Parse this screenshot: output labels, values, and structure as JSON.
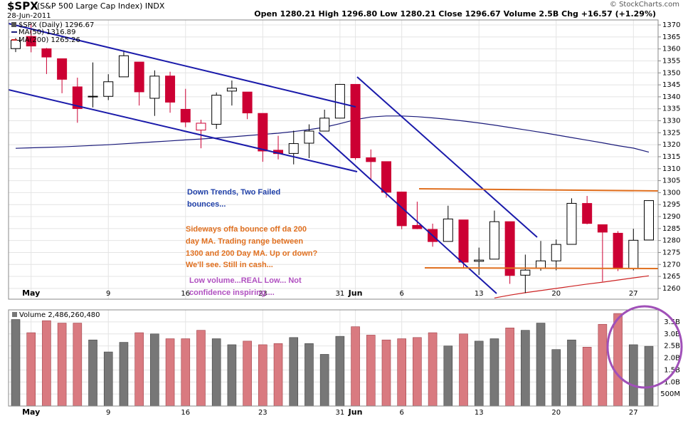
{
  "chart_data": {
    "type": "candlestick",
    "symbol": "$SPX",
    "title": "(S&P 500 Large Cap Index) INDX",
    "date": "28-Jun-2011",
    "quote": "Open 1280.21  High 1296.80  Low 1280.21  Close 1296.67  Volume 2.5B  Chg +16.57 (+1.29%)",
    "copyright": "© StockCharts.com",
    "price_legend": "$SPX (Daily) 1296.67",
    "categories": [
      null,
      "May",
      null,
      null,
      null,
      null,
      "9",
      null,
      null,
      null,
      null,
      "16",
      null,
      null,
      null,
      null,
      "23",
      null,
      null,
      null,
      null,
      "31",
      "Jun",
      null,
      null,
      "6",
      null,
      null,
      null,
      null,
      "13",
      null,
      null,
      null,
      null,
      "20",
      null,
      null,
      null,
      null,
      "27",
      null
    ],
    "open": [
      1360.14,
      1365.21,
      1360.07,
      1355.9,
      1344.16,
      1340.24,
      1340.2,
      1348.34,
      1354.51,
      1339.39,
      1348.69,
      1334.77,
      1326.1,
      1328.54,
      1342.4,
      1342,
      1333.07,
      1317.7,
      1316.36,
      1320.64,
      1325.69,
      1331.1,
      1345.2,
      1314.55,
      1312.94,
      1300.26,
      1286.31,
      1284.63,
      1279.63,
      1288.6,
      1271.31,
      1272.22,
      1287.87,
      1265.53,
      1268.58,
      1271.5,
      1278.4,
      1295.48,
      1286.6,
      1283.04,
      1268.44,
      1280.21
    ],
    "high": [
      1364.56,
      1370.58,
      1360.41,
      1355.9,
      1348,
      1354.36,
      1349.44,
      1359.44,
      1354.51,
      1351.05,
      1350.47,
      1343.33,
      1330.42,
      1341.82,
      1346.82,
      1342,
      1333.07,
      1323.72,
      1325.86,
      1328.51,
      1334.62,
      1345.2,
      1345.2,
      1318.03,
      1312.94,
      1300.26,
      1296.22,
      1287.04,
      1294.54,
      1288.6,
      1277.04,
      1292.5,
      1287.87,
      1274.11,
      1279.82,
      1280.42,
      1297.62,
      1298.61,
      1286.6,
      1283.93,
      1284.91,
      1296.8
    ],
    "low": [
      1358.69,
      1358.59,
      1349.52,
      1341.5,
      1329.17,
      1335.58,
      1338.64,
      1348.34,
      1336.36,
      1332.03,
      1333.36,
      1327.32,
      1318.51,
      1326.59,
      1336.36,
      1330.67,
      1312.88,
      1313.87,
      1311.8,
      1314.41,
      1325.69,
      1331.1,
      1313.71,
      1305.61,
      1297.9,
      1284.72,
      1284.74,
      1277.42,
      1279.63,
      1268.28,
      1265.64,
      1272.22,
      1261.9,
      1258.07,
      1267.4,
      1267.56,
      1278.4,
      1286.79,
      1262.87,
      1267.24,
      1267.53,
      1280.21
    ],
    "close": [
      1363.61,
      1361.22,
      1356.62,
      1347.32,
      1335.1,
      1340.2,
      1346.29,
      1357.16,
      1342.08,
      1348.65,
      1337.77,
      1329.47,
      1328.98,
      1340.68,
      1343.6,
      1333.27,
      1317.37,
      1316.28,
      1320.47,
      1325.69,
      1331.1,
      1345.2,
      1314.55,
      1312.94,
      1300.16,
      1286.17,
      1284.94,
      1279.56,
      1289,
      1270.98,
      1271.83,
      1287.87,
      1265.42,
      1267.64,
      1271.5,
      1278.36,
      1295.52,
      1287.14,
      1283.5,
      1268.45,
      1280.1,
      1296.67
    ],
    "up_color": "#000000",
    "down_color": "#cc0033",
    "series": [
      {
        "name": "MA(50) 1316.89",
        "color": "#1a1a7a",
        "values": [
          1318.5,
          1318.7,
          1318.9,
          1319.1,
          1319.4,
          1319.7,
          1320,
          1320.4,
          1320.8,
          1321.2,
          1321.6,
          1322,
          1322.4,
          1322.8,
          1323.3,
          1323.8,
          1324.3,
          1324.8,
          1325.5,
          1326.3,
          1327.3,
          1328.8,
          1330.5,
          1331.6,
          1332,
          1332,
          1331.7,
          1331.2,
          1330.6,
          1329.9,
          1329.1,
          1328.2,
          1327.2,
          1326.2,
          1325.2,
          1324.1,
          1323,
          1321.9,
          1320.8,
          1319.6,
          1318.6,
          1316.89
        ]
      },
      {
        "name": "MA(200) 1265.26",
        "color": "#cc2222",
        "values": [
          null,
          null,
          null,
          null,
          null,
          null,
          null,
          null,
          null,
          null,
          null,
          null,
          null,
          null,
          null,
          null,
          null,
          null,
          null,
          null,
          null,
          null,
          null,
          null,
          null,
          null,
          null,
          null,
          null,
          null,
          null,
          1256,
          1257.2,
          1258.2,
          1259.1,
          1260,
          1260.9,
          1261.8,
          1262.6,
          1263.5,
          1264.4,
          1265.26
        ]
      }
    ],
    "ylim": [
      1255.5,
      1372.1
    ],
    "yticks": [
      1260,
      1265,
      1270,
      1275,
      1280,
      1285,
      1290,
      1295,
      1300,
      1305,
      1310,
      1315,
      1320,
      1325,
      1330,
      1335,
      1340,
      1345,
      1350,
      1355,
      1360,
      1365,
      1370
    ],
    "grid": true,
    "annotations": [
      {
        "lines": [
          "Down Trends, Two Failed",
          "bounces..."
        ],
        "color": "#1f3fa8"
      },
      {
        "lines": [
          "Sideways offa bounce off da 200",
          "day MA.  Trading range between",
          "1300 and 200 Day MA.  Up or down?",
          "We'll see. Still in cash..."
        ],
        "color": "#e07020"
      },
      {
        "lines": [
          "Low volume...REAL Low... Not",
          "confidence inspiring...."
        ],
        "color": "#b050c0"
      }
    ],
    "volume": {
      "title": "Volume 2,486,260,480",
      "up_color": "#777777",
      "down_color": "#d97a80",
      "values": [
        3600000000,
        3050000000,
        3550000000,
        3450000000,
        3450000000,
        2750000000,
        2250000000,
        2650000000,
        3050000000,
        3000000000,
        2800000000,
        2800000000,
        3150000000,
        2800000000,
        2550000000,
        2700000000,
        2550000000,
        2600000000,
        2850000000,
        2600000000,
        2150000000,
        2900000000,
        3300000000,
        2950000000,
        2750000000,
        2800000000,
        2850000000,
        3050000000,
        2500000000,
        3000000000,
        2700000000,
        2800000000,
        3250000000,
        3150000000,
        3450000000,
        2350000000,
        2750000000,
        2450000000,
        3400000000,
        3850000000,
        2550000000,
        2486260480
      ],
      "ylim": [
        0,
        4000000000
      ],
      "yticks": [
        {
          "value": 500000000,
          "label": "500M"
        },
        {
          "value": 1000000000,
          "label": "1.0B"
        },
        {
          "value": 1500000000,
          "label": "1.5B"
        },
        {
          "value": 2000000000,
          "label": "2.0B"
        },
        {
          "value": 2500000000,
          "label": "2.5B"
        },
        {
          "value": 3000000000,
          "label": "3.0B"
        },
        {
          "value": 3500000000,
          "label": "3.5B"
        }
      ]
    }
  }
}
